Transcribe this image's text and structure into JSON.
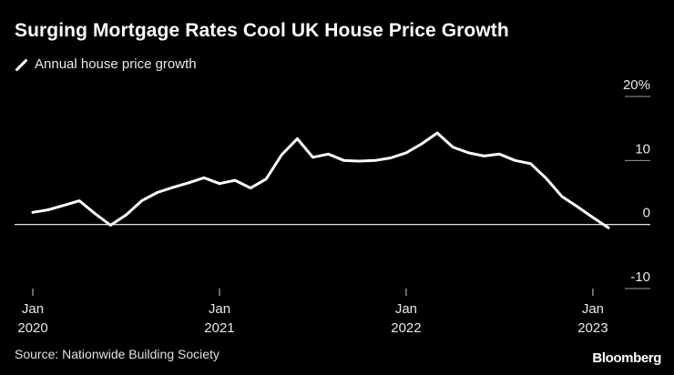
{
  "header": {
    "title": "Surging Mortgage Rates Cool UK House Price Growth",
    "legend_label": "Annual house price growth"
  },
  "footer": {
    "source": "Source: Nationwide Building Society",
    "brand": "Bloomberg"
  },
  "colors": {
    "background": "#000000",
    "line": "#ffffff",
    "grid": "#9a9a9a",
    "zero_line": "#ffffff"
  },
  "chart_data": {
    "type": "line",
    "title": "Surging Mortgage Rates Cool UK House Price Growth",
    "xlabel": "",
    "ylabel": "",
    "ylim": [
      -10,
      20
    ],
    "y_ticks": [
      {
        "value": 20,
        "label": "20%"
      },
      {
        "value": 10,
        "label": "10"
      },
      {
        "value": 0,
        "label": "0"
      },
      {
        "value": -10,
        "label": "-10"
      }
    ],
    "x_ticks": [
      {
        "index": 0,
        "month": "Jan",
        "year": "2020"
      },
      {
        "index": 12,
        "month": "Jan",
        "year": "2021"
      },
      {
        "index": 24,
        "month": "Jan",
        "year": "2022"
      },
      {
        "index": 36,
        "month": "Jan",
        "year": "2023"
      }
    ],
    "x": [
      "2020-01",
      "2020-02",
      "2020-03",
      "2020-04",
      "2020-05",
      "2020-06",
      "2020-07",
      "2020-08",
      "2020-09",
      "2020-10",
      "2020-11",
      "2020-12",
      "2021-01",
      "2021-02",
      "2021-03",
      "2021-04",
      "2021-05",
      "2021-06",
      "2021-07",
      "2021-08",
      "2021-09",
      "2021-10",
      "2021-11",
      "2021-12",
      "2022-01",
      "2022-02",
      "2022-03",
      "2022-04",
      "2022-05",
      "2022-06",
      "2022-07",
      "2022-08",
      "2022-09",
      "2022-10",
      "2022-11",
      "2022-12",
      "2023-01",
      "2023-02"
    ],
    "series": [
      {
        "name": "Annual house price growth",
        "values": [
          1.9,
          2.3,
          3.0,
          3.7,
          1.7,
          -0.1,
          1.5,
          3.7,
          5.0,
          5.8,
          6.5,
          7.3,
          6.4,
          6.9,
          5.7,
          7.1,
          10.9,
          13.4,
          10.5,
          11.0,
          10.0,
          9.9,
          10.0,
          10.4,
          11.2,
          12.6,
          14.3,
          12.1,
          11.2,
          10.7,
          11.0,
          10.0,
          9.5,
          7.2,
          4.4,
          2.8,
          1.1,
          -0.5
        ]
      }
    ]
  }
}
